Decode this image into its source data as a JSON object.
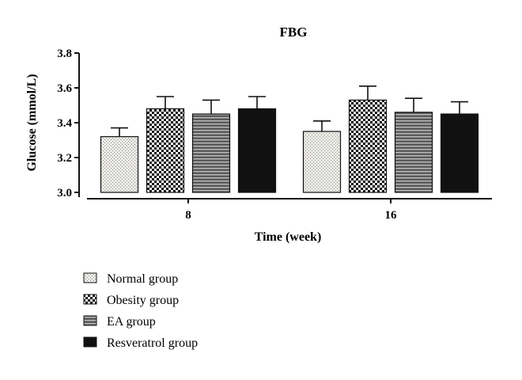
{
  "chart_data": {
    "type": "bar",
    "title": "FBG",
    "xlabel": "Time (week)",
    "ylabel": "Glucose (mmol/L)",
    "ylim": [
      3.0,
      3.8
    ],
    "yticks": [
      "3.0",
      "3.2",
      "3.4",
      "3.6",
      "3.8"
    ],
    "categories": [
      "8",
      "16"
    ],
    "series": [
      {
        "name": "Normal group",
        "values": [
          3.32,
          3.35
        ],
        "errors": [
          0.05,
          0.06
        ],
        "pattern": "dots"
      },
      {
        "name": "Obesity group",
        "values": [
          3.48,
          3.53
        ],
        "errors": [
          0.07,
          0.08
        ],
        "pattern": "checker"
      },
      {
        "name": "EA group",
        "values": [
          3.45,
          3.46
        ],
        "errors": [
          0.08,
          0.08
        ],
        "pattern": "hlines"
      },
      {
        "name": "Resveratrol group",
        "values": [
          3.48,
          3.45
        ],
        "errors": [
          0.07,
          0.07
        ],
        "pattern": "solid"
      }
    ],
    "grid": false,
    "legend_position": "bottom-left"
  }
}
